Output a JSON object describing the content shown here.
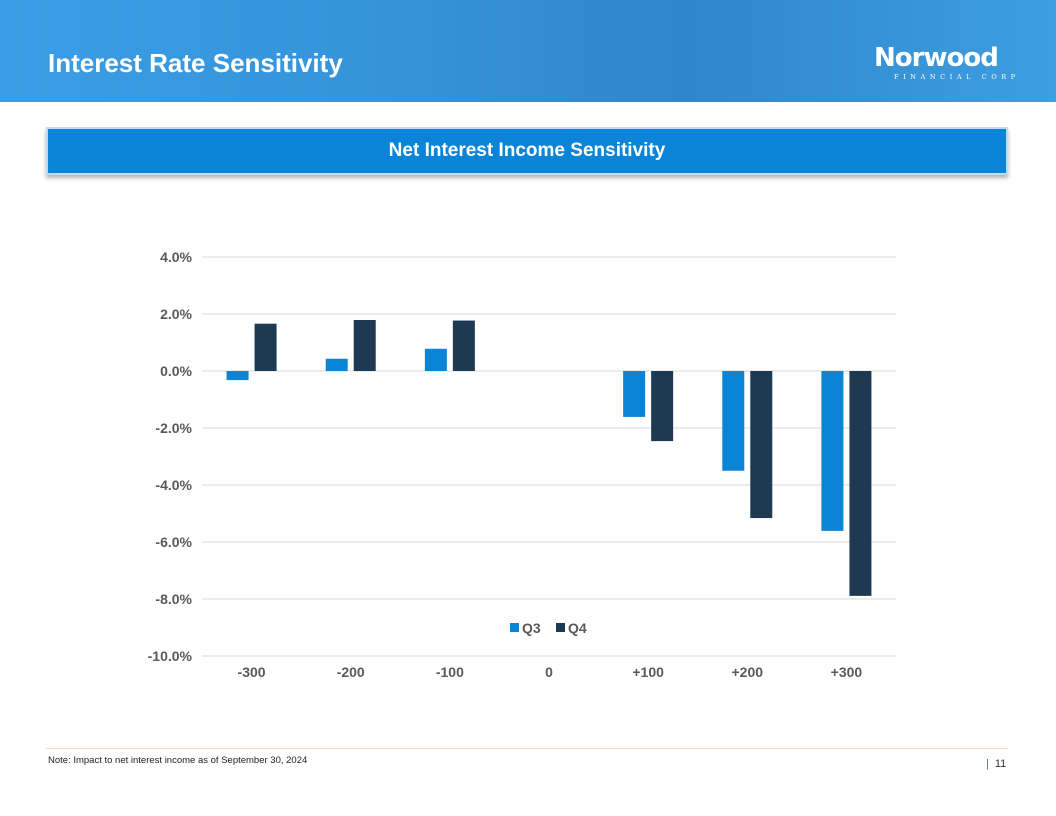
{
  "header": {
    "title": "Interest Rate Sensitivity",
    "logo_text": "Norwood",
    "logo_subtext": "FINANCIAL CORP"
  },
  "banner": {
    "title": "Net Interest Income Sensitivity"
  },
  "footer": {
    "note": "Note: Impact to net interest income as of September 30, 2024",
    "page": "11"
  },
  "colors": {
    "q3": "#0a84d6",
    "q4": "#1e3a52"
  },
  "chart_data": {
    "type": "bar",
    "title": "Net Interest Income Sensitivity",
    "categories": [
      "-300",
      "-200",
      "-100",
      "0",
      "+100",
      "+200",
      "+300"
    ],
    "series": [
      {
        "name": "Q3",
        "values": [
          -0.32,
          0.43,
          0.78,
          null,
          -1.61,
          -3.5,
          -5.61
        ]
      },
      {
        "name": "Q4",
        "values": [
          1.66,
          1.79,
          1.77,
          null,
          -2.46,
          -5.16,
          -7.89
        ]
      }
    ],
    "ylim": [
      -10,
      4
    ],
    "yticks": [
      4,
      2,
      0,
      -2,
      -4,
      -6,
      -8,
      -10
    ],
    "ytick_labels": [
      "4.0%",
      "2.0%",
      "0.0%",
      "-2.0%",
      "-4.0%",
      "-6.0%",
      "-8.0%",
      "-10.0%"
    ],
    "legend": "bottom-inside",
    "grid": true,
    "xlabel": "",
    "ylabel": ""
  }
}
